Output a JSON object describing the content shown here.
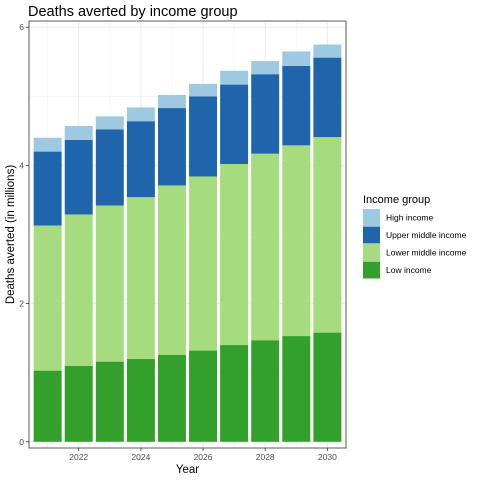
{
  "chart_data": {
    "type": "bar",
    "stacked": true,
    "title": "Deaths averted by income group",
    "xlabel": "Year",
    "ylabel": "Deaths averted (in millions)",
    "x": [
      2021,
      2022,
      2023,
      2024,
      2025,
      2026,
      2027,
      2028,
      2029,
      2030
    ],
    "xticks": [
      2022,
      2024,
      2026,
      2028,
      2030
    ],
    "yticks": [
      0,
      2,
      4,
      6
    ],
    "ylim": [
      -0.09,
      6.09
    ],
    "xlim": [
      2020.4,
      2030.6
    ],
    "grid": true,
    "legend_position": "right",
    "legend_title": "Income group",
    "series": [
      {
        "name": "Low income",
        "color": "#33a02c",
        "values": [
          1.03,
          1.1,
          1.16,
          1.2,
          1.26,
          1.32,
          1.4,
          1.47,
          1.53,
          1.58
        ]
      },
      {
        "name": "Lower middle income",
        "color": "#a6dc7f",
        "values": [
          2.1,
          2.19,
          2.26,
          2.34,
          2.45,
          2.52,
          2.62,
          2.7,
          2.76,
          2.83
        ]
      },
      {
        "name": "Upper middle income",
        "color": "#1f65ab",
        "values": [
          1.07,
          1.08,
          1.1,
          1.1,
          1.12,
          1.16,
          1.15,
          1.15,
          1.15,
          1.15
        ]
      },
      {
        "name": "High income",
        "color": "#9ecae1",
        "values": [
          0.2,
          0.2,
          0.19,
          0.2,
          0.19,
          0.18,
          0.2,
          0.19,
          0.21,
          0.19
        ]
      }
    ],
    "legend_order": [
      "High income",
      "Upper middle income",
      "Lower middle income",
      "Low income"
    ]
  }
}
